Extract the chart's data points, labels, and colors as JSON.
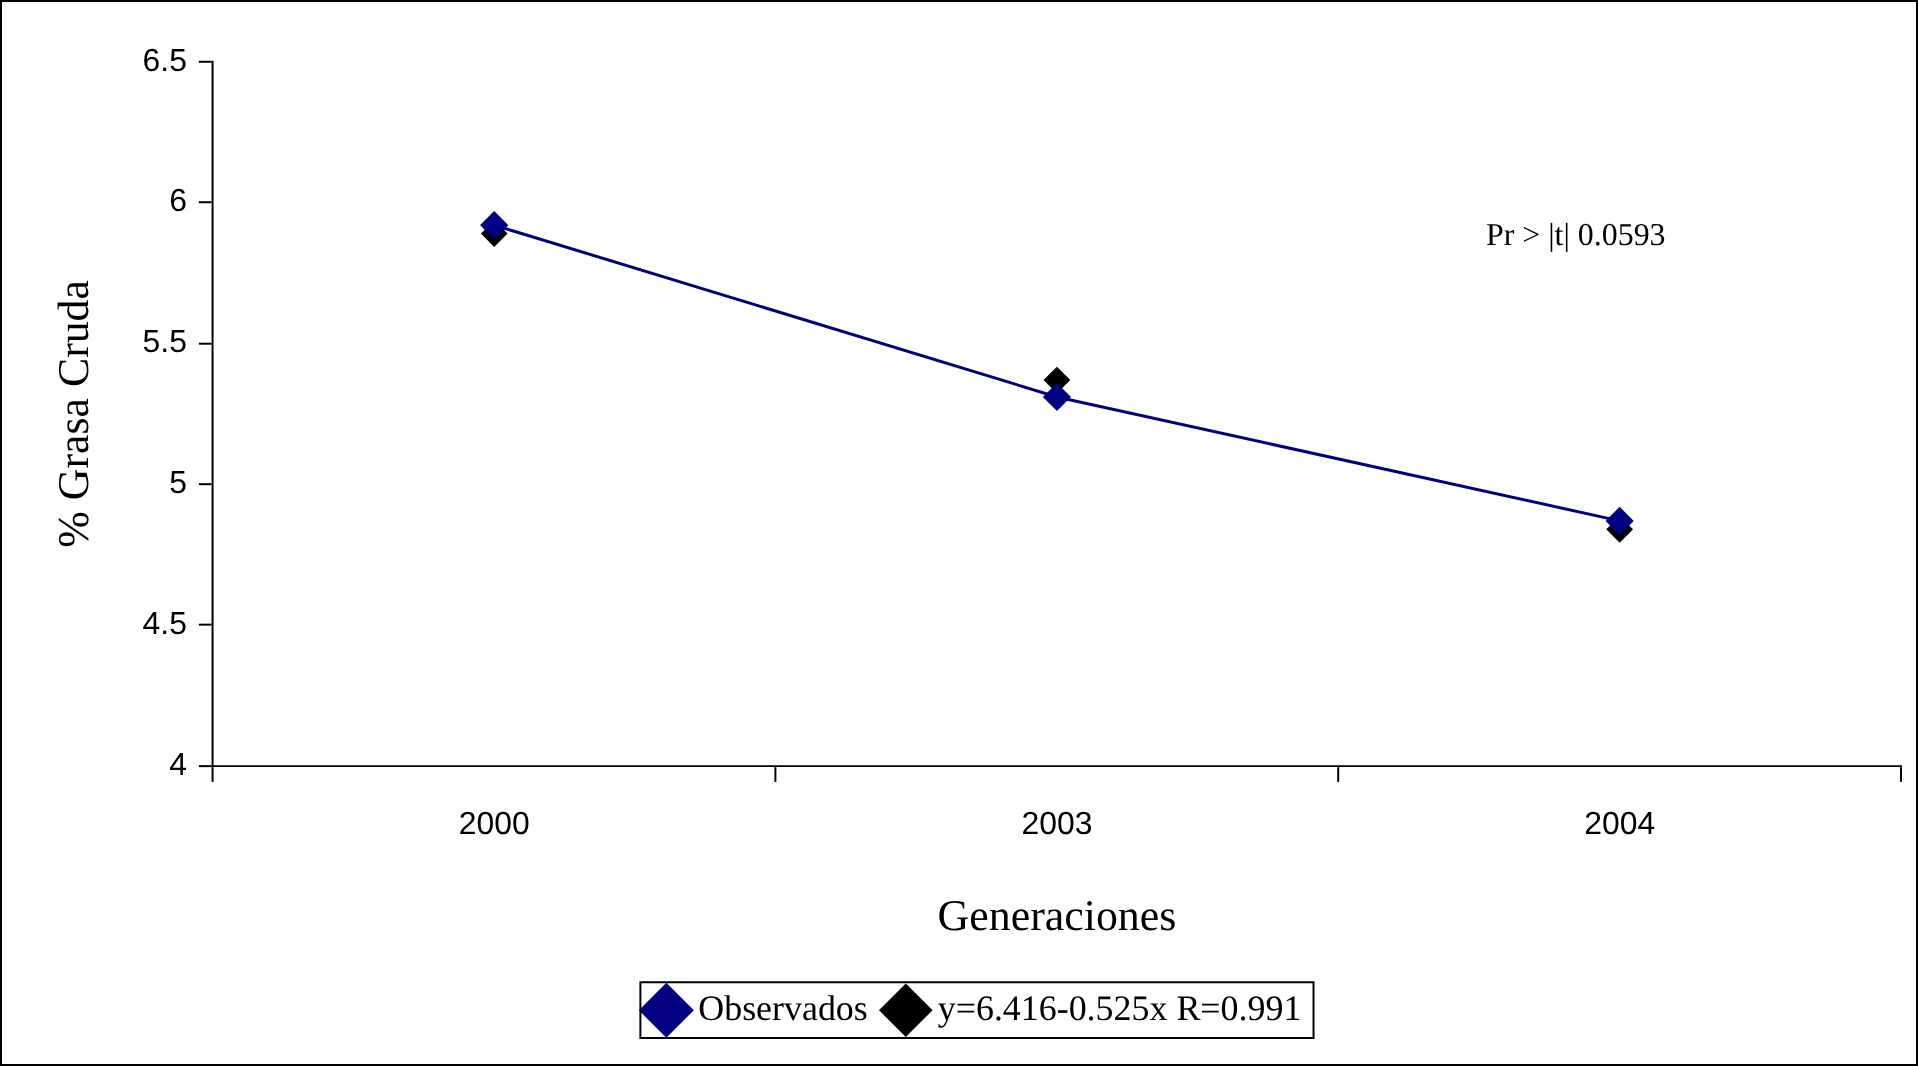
{
  "chart_data": {
    "type": "line",
    "xlabel": "Generaciones",
    "ylabel": "% Grasa Cruda",
    "categories": [
      "2000",
      "2003",
      "2004"
    ],
    "series": [
      {
        "name": "Observados",
        "color": "#000080",
        "values": [
          5.92,
          5.31,
          4.87
        ]
      },
      {
        "name": "y=6.416-0.525x R=0.991",
        "type": "scatter",
        "color": "#000000",
        "values": [
          5.89,
          5.37,
          4.84
        ]
      }
    ],
    "ylim": [
      4,
      6.5
    ],
    "yticks": [
      4,
      4.5,
      5,
      5.5,
      6,
      6.5
    ],
    "grid": false,
    "legend": "bottom",
    "marker": "diamond",
    "line_style": "solid",
    "annotations": [
      "Pr > |t| 0.0593"
    ]
  }
}
